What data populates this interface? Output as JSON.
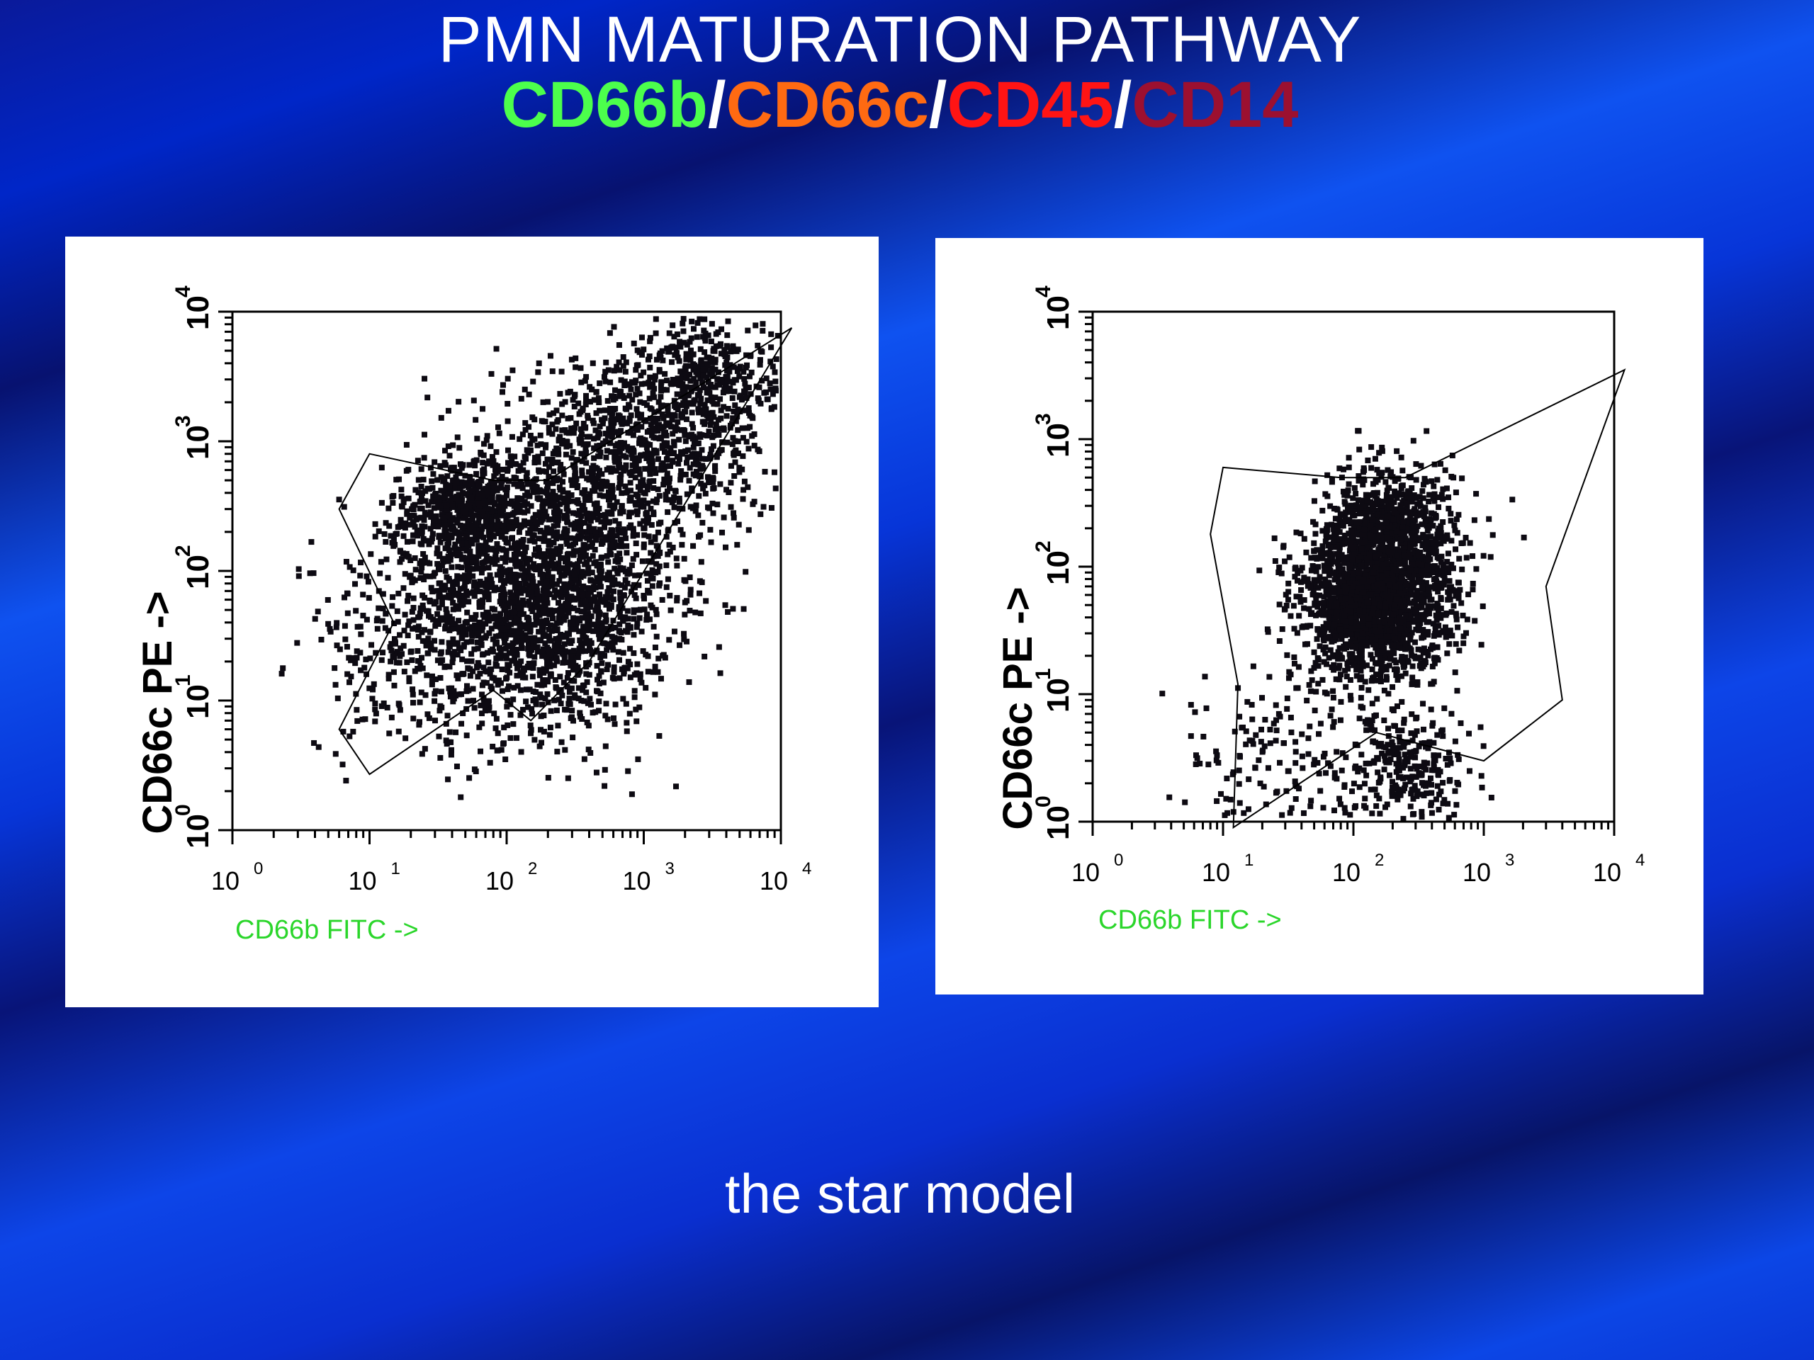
{
  "slide": {
    "title": "PMN MATURATION PATHWAY",
    "subtitle_parts": [
      {
        "text": "CD66b",
        "color": "#4cff4c"
      },
      {
        "text": "/",
        "color": "#ffffff"
      },
      {
        "text": "CD66c",
        "color": "#ff6a12"
      },
      {
        "text": "/",
        "color": "#ffffff"
      },
      {
        "text": "CD45",
        "color": "#ff1414"
      },
      {
        "text": "/",
        "color": "#ffffff"
      },
      {
        "text": "CD14",
        "color": "#9c1030"
      }
    ],
    "caption": "the star model"
  },
  "chart_data": [
    {
      "type": "scatter",
      "xlabel": "CD66b FITC ->",
      "ylabel": "CD66c PE ->",
      "x_scale": "log",
      "y_scale": "log",
      "xlim": [
        1,
        10000
      ],
      "ylim": [
        1,
        10000
      ],
      "x_ticks": [
        {
          "base": "10",
          "exp": "0"
        },
        {
          "base": "10",
          "exp": "1"
        },
        {
          "base": "10",
          "exp": "2"
        },
        {
          "base": "10",
          "exp": "3"
        },
        {
          "base": "10",
          "exp": "4"
        }
      ],
      "y_ticks": [
        {
          "base": "10",
          "exp": "0"
        },
        {
          "base": "10",
          "exp": "1"
        },
        {
          "base": "10",
          "exp": "2"
        },
        {
          "base": "10",
          "exp": "3"
        },
        {
          "base": "10",
          "exp": "4"
        }
      ],
      "gate_polygon": [
        [
          10,
          800
        ],
        [
          80,
          500
        ],
        [
          200,
          500
        ],
        [
          12000,
          7500
        ],
        [
          400,
          20
        ],
        [
          150,
          7
        ],
        [
          80,
          12
        ],
        [
          10,
          2.7
        ],
        [
          6,
          6
        ],
        [
          15,
          40
        ],
        [
          6,
          300
        ]
      ],
      "clusters": [
        {
          "cx": 200,
          "cy": 60,
          "spread_x": 0.45,
          "spread_y": 0.5,
          "count": 1900
        },
        {
          "cx": 55,
          "cy": 280,
          "spread_x": 0.3,
          "spread_y": 0.22,
          "count": 650
        },
        {
          "cx": 800,
          "cy": 800,
          "spread_x": 0.5,
          "spread_y": 0.35,
          "count": 1000
        },
        {
          "cx": 3000,
          "cy": 3000,
          "spread_x": 0.25,
          "spread_y": 0.25,
          "count": 350
        },
        {
          "cx": 25,
          "cy": 25,
          "spread_x": 0.45,
          "spread_y": 0.4,
          "count": 350
        }
      ]
    },
    {
      "type": "scatter",
      "xlabel": "CD66b FITC ->",
      "ylabel": "CD66c PE ->",
      "x_scale": "log",
      "y_scale": "log",
      "xlim": [
        1,
        10000
      ],
      "ylim": [
        1,
        10000
      ],
      "x_ticks": [
        {
          "base": "10",
          "exp": "0"
        },
        {
          "base": "10",
          "exp": "1"
        },
        {
          "base": "10",
          "exp": "2"
        },
        {
          "base": "10",
          "exp": "3"
        },
        {
          "base": "10",
          "exp": "4"
        }
      ],
      "y_ticks": [
        {
          "base": "10",
          "exp": "0"
        },
        {
          "base": "10",
          "exp": "1"
        },
        {
          "base": "10",
          "exp": "2"
        },
        {
          "base": "10",
          "exp": "3"
        },
        {
          "base": "10",
          "exp": "4"
        }
      ],
      "gate_polygon": [
        [
          10,
          600
        ],
        [
          80,
          500
        ],
        [
          250,
          500
        ],
        [
          12000,
          3500
        ],
        [
          3000,
          70
        ],
        [
          4000,
          9
        ],
        [
          1000,
          3
        ],
        [
          150,
          5
        ],
        [
          12,
          0.9
        ],
        [
          13,
          12
        ],
        [
          8,
          180
        ]
      ],
      "clusters": [
        {
          "cx": 150,
          "cy": 60,
          "spread_x": 0.28,
          "spread_y": 0.32,
          "count": 2200
        },
        {
          "cx": 200,
          "cy": 220,
          "spread_x": 0.25,
          "spread_y": 0.25,
          "count": 500
        },
        {
          "cx": 250,
          "cy": 2.5,
          "spread_x": 0.25,
          "spread_y": 0.25,
          "count": 300
        },
        {
          "cx": 20,
          "cy": 3,
          "spread_x": 0.35,
          "spread_y": 0.35,
          "count": 150
        }
      ]
    }
  ]
}
